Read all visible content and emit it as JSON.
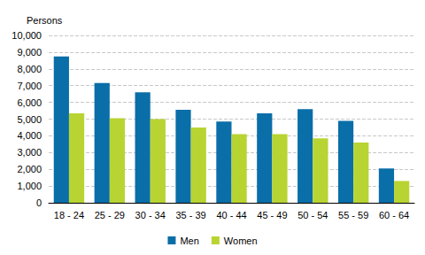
{
  "chart_data": {
    "type": "bar",
    "ylabel": "Persons",
    "categories": [
      "18 - 24",
      "25 - 29",
      "30 - 34",
      "35 - 39",
      "40 - 44",
      "45 - 49",
      "50 - 54",
      "55 - 59",
      "60 - 64"
    ],
    "series": [
      {
        "name": "Men",
        "color": "#0a6ea8",
        "values": [
          8750,
          7150,
          6600,
          5550,
          4850,
          5350,
          5600,
          4900,
          2050
        ]
      },
      {
        "name": "Women",
        "color": "#b8d432",
        "values": [
          5350,
          5050,
          5000,
          4500,
          4100,
          4100,
          3850,
          3600,
          1300
        ]
      }
    ],
    "ylim": [
      0,
      10000
    ],
    "yticks": [
      0,
      {
        "value": 1000,
        "label": "1,000"
      },
      {
        "value": 2000,
        "label": "2,000"
      },
      {
        "value": 3000,
        "label": "3,000"
      },
      {
        "value": 4000,
        "label": "4,000"
      },
      {
        "value": 5000,
        "label": "5,000"
      },
      {
        "value": 6000,
        "label": "6,000"
      },
      {
        "value": 7000,
        "label": "7,000"
      },
      {
        "value": 8000,
        "label": "8,000"
      },
      {
        "value": 9000,
        "label": "9,000"
      },
      {
        "value": 10000,
        "label": "10,000"
      }
    ],
    "grid": true,
    "legend": "bottom"
  }
}
